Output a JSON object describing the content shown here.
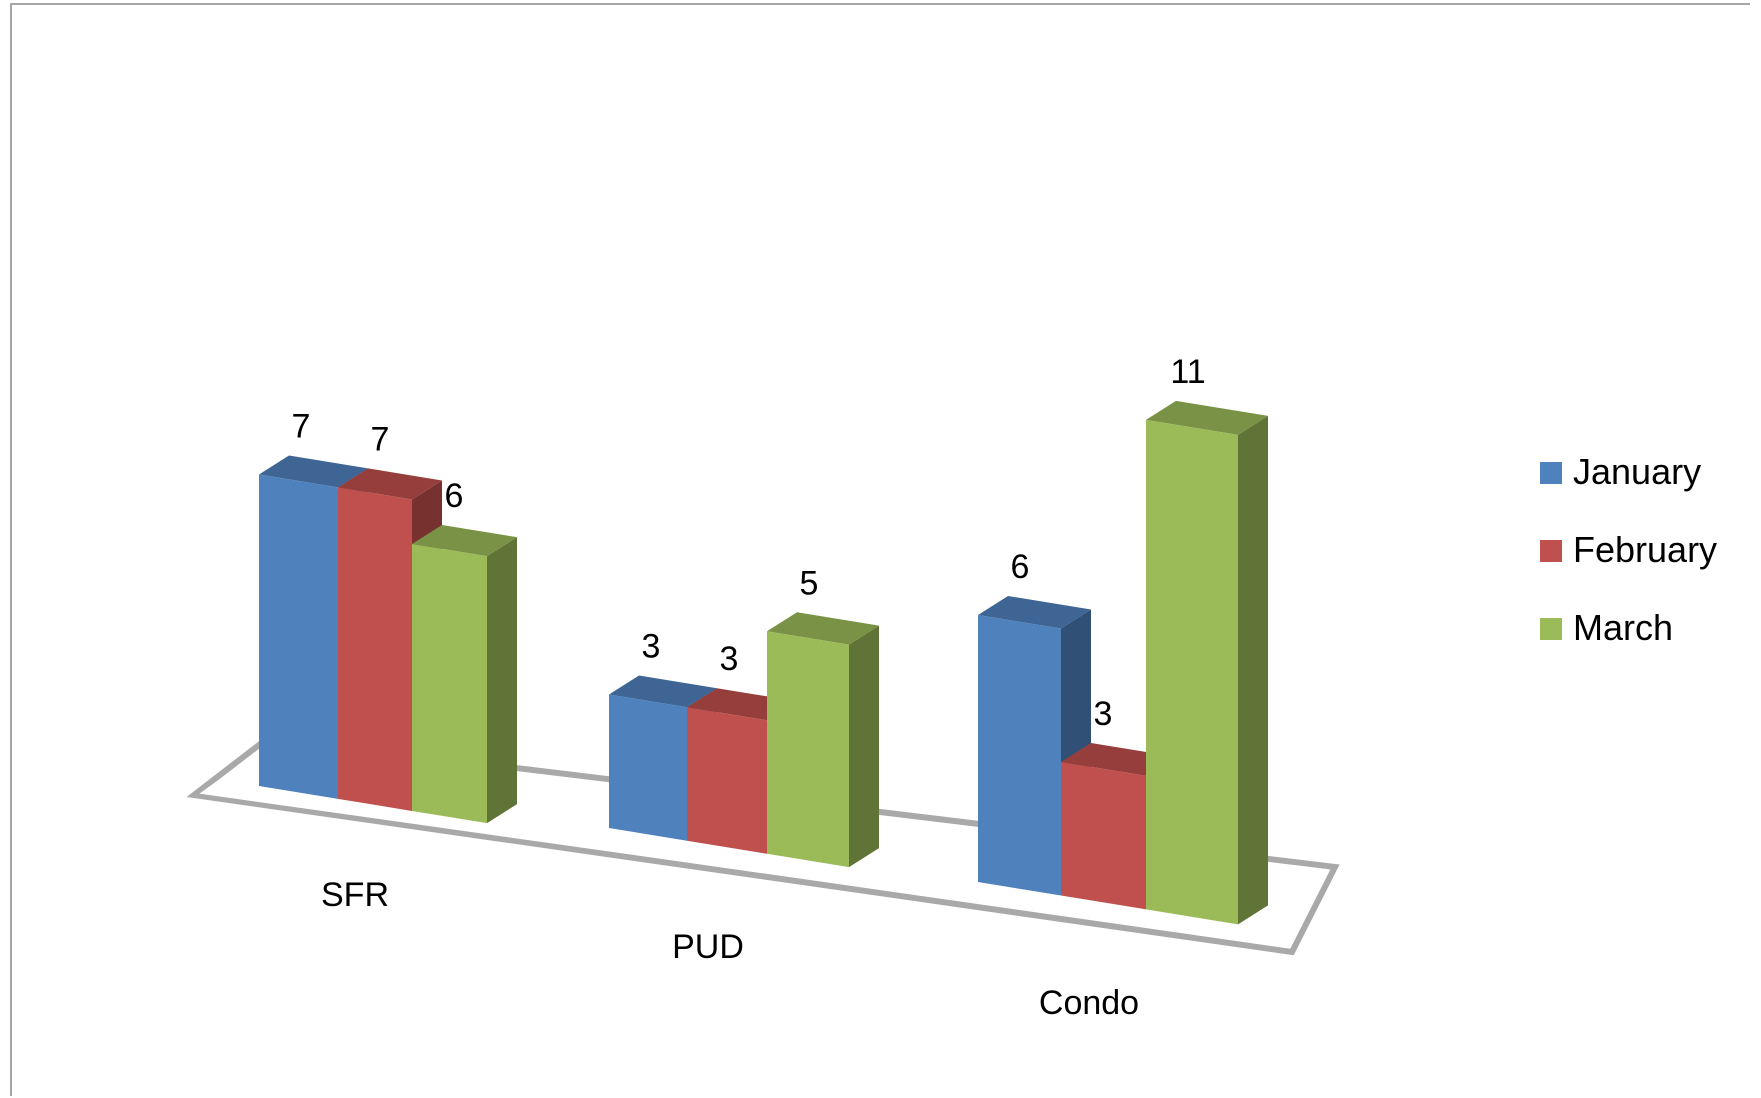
{
  "chart_data": {
    "type": "bar",
    "variant": "3d-clustered-column",
    "title": "",
    "xlabel": "",
    "ylabel": "",
    "categories": [
      "SFR",
      "PUD",
      "Condo"
    ],
    "series": [
      {
        "name": "January",
        "values": [
          7,
          3,
          6
        ],
        "color": "#4f81bd"
      },
      {
        "name": "February",
        "values": [
          7,
          3,
          3
        ],
        "color": "#c0504d"
      },
      {
        "name": "March",
        "values": [
          6,
          5,
          11
        ],
        "color": "#9bbb59"
      }
    ],
    "data_labels": true,
    "grid": false,
    "legend": {
      "position": "right"
    },
    "border_color": "#a6a6a6"
  }
}
